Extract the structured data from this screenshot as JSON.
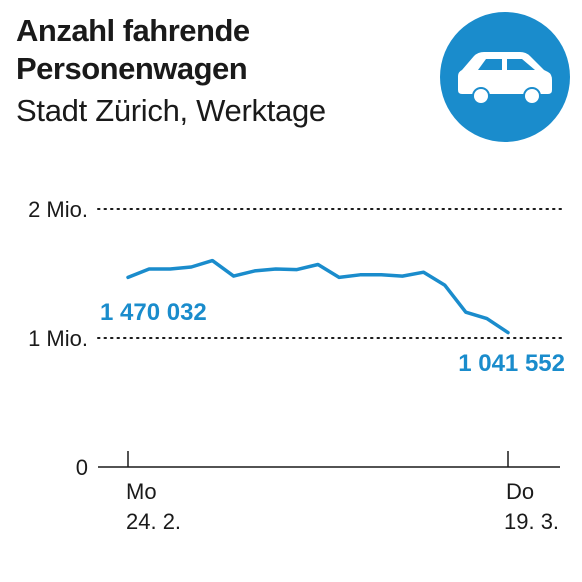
{
  "header": {
    "title_line1": "Anzahl fahrende",
    "title_line2": "Personenwagen",
    "subtitle": "Stadt Zürich, Werktage"
  },
  "badge": {
    "icon": "car-icon",
    "color": "#1a8ccc"
  },
  "colors": {
    "line": "#1a8ccc",
    "text": "#1a1a1a"
  },
  "chart_data": {
    "type": "line",
    "title": "Anzahl fahrende Personenwagen",
    "subtitle": "Stadt Zürich, Werktage",
    "ylim": [
      0,
      2000000
    ],
    "yticks": [
      {
        "value": 0,
        "label": "0"
      },
      {
        "value": 1000000,
        "label": "1 Mio."
      },
      {
        "value": 2000000,
        "label": "2 Mio."
      }
    ],
    "x_start_label": [
      "Mo",
      "24. 2."
    ],
    "x_end_label": [
      "Do",
      "19. 3."
    ],
    "series": [
      {
        "values": [
          1470032,
          1535000,
          1535000,
          1550000,
          1600000,
          1480000,
          1520000,
          1535000,
          1530000,
          1570000,
          1470000,
          1490000,
          1490000,
          1480000,
          1510000,
          1410000,
          1200000,
          1150000,
          1041552
        ]
      }
    ],
    "annotations": [
      {
        "index": 0,
        "label": "1 470 032"
      },
      {
        "index": 18,
        "label": "1 041 552"
      }
    ],
    "grid": true
  }
}
